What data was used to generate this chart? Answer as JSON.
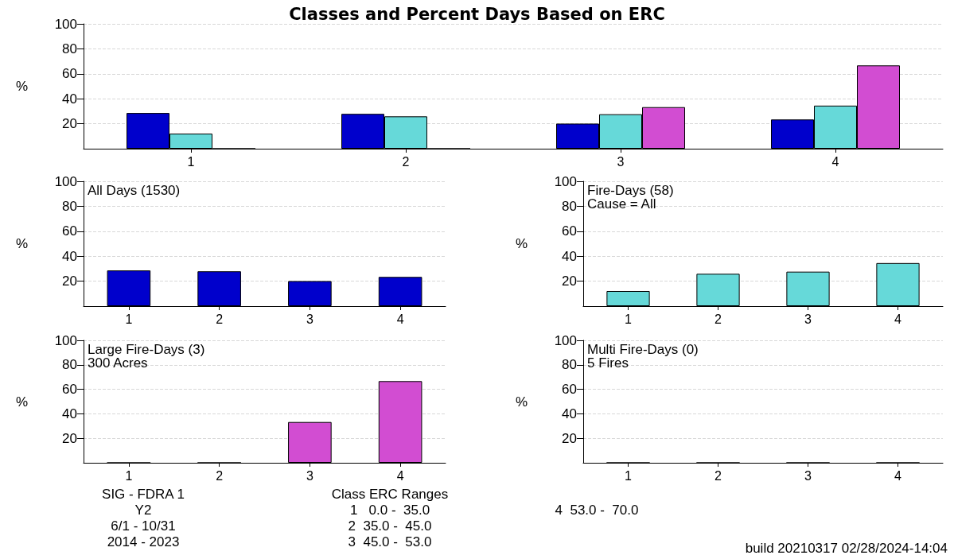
{
  "chart_data": [
    {
      "type": "bar",
      "title": "Classes and Percent Days Based on ERC",
      "ylabel": "%",
      "categories": [
        "1",
        "2",
        "3",
        "4"
      ],
      "series": [
        {
          "color": "#0000cc",
          "values": [
            28.6,
            27.9,
            20.1,
            23.4
          ]
        },
        {
          "color": "#66d9d9",
          "values": [
            12.1,
            25.9,
            27.6,
            34.5
          ]
        },
        {
          "color": "#d24dd2",
          "values": [
            0,
            0,
            33.3,
            66.7
          ]
        }
      ],
      "ylim": [
        0,
        100
      ],
      "yticks": [
        20,
        40,
        60,
        80,
        100
      ],
      "grid": "y",
      "annotations": [
        "SIG - FDRA 1",
        "Y2",
        "6/1 - 10/31",
        "2014 - 2023",
        "Class ERC Ranges",
        "1   0.0 -  35.0",
        "2  35.0 -  45.0",
        "3  45.0 -  53.0",
        "4  53.0 -  70.0",
        "build 20210317 02/28/2024-14:04"
      ]
    },
    {
      "type": "bar",
      "title": "All Days (1530)",
      "ylabel": "%",
      "categories": [
        "1",
        "2",
        "3",
        "4"
      ],
      "color": "#0000cc",
      "values": [
        28.6,
        27.9,
        20.1,
        23.4
      ],
      "ylim": [
        0,
        100
      ],
      "yticks": [
        20,
        40,
        60,
        80,
        100
      ],
      "grid": "y"
    },
    {
      "type": "bar",
      "title": "Fire-Days (58)",
      "subtitle": "Cause = All",
      "ylabel": "%",
      "categories": [
        "1",
        "2",
        "3",
        "4"
      ],
      "color": "#66d9d9",
      "values": [
        12.1,
        25.9,
        27.6,
        34.5
      ],
      "ylim": [
        0,
        100
      ],
      "yticks": [
        20,
        40,
        60,
        80,
        100
      ],
      "grid": "y"
    },
    {
      "type": "bar",
      "title": "Large Fire-Days (3)",
      "subtitle": "300 Acres",
      "ylabel": "%",
      "categories": [
        "1",
        "2",
        "3",
        "4"
      ],
      "color": "#d24dd2",
      "values": [
        0,
        0,
        33.3,
        66.7
      ],
      "ylim": [
        0,
        100
      ],
      "yticks": [
        20,
        40,
        60,
        80,
        100
      ],
      "grid": "y"
    },
    {
      "type": "bar",
      "title": "Multi Fire-Days (0)",
      "subtitle": "5 Fires",
      "ylabel": "%",
      "categories": [
        "1",
        "2",
        "3",
        "4"
      ],
      "values": [
        0,
        0,
        0,
        0
      ],
      "ylim": [
        0,
        100
      ],
      "yticks": [
        20,
        40,
        60,
        80,
        100
      ],
      "grid": "y"
    }
  ]
}
